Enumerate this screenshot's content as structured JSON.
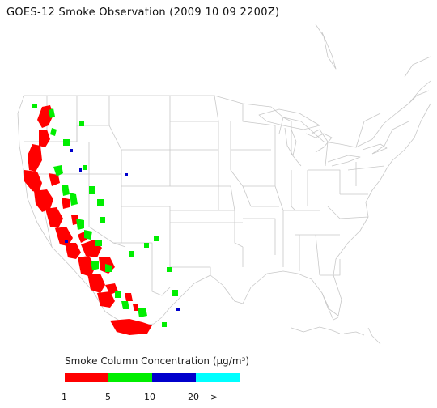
{
  "title": "GOES-12 Smoke Observation (2009 10 09  2200Z)",
  "legend": {
    "title": "Smoke Column Concentration (μg/m³)",
    "bins": [
      {
        "name": "1-5",
        "color": "#ff0000"
      },
      {
        "name": "5-10",
        "color": "#00ee00"
      },
      {
        "name": "10-20",
        "color": "#0000cc"
      },
      {
        "name": ">20",
        "color": "#00ffff"
      }
    ],
    "ticks": [
      "1",
      "5",
      "10",
      "20",
      ">"
    ]
  },
  "colors": {
    "boundaries": "#c8c8c8",
    "low": "#ff0000",
    "mid": "#00ee00",
    "high": "#0000cc"
  }
}
